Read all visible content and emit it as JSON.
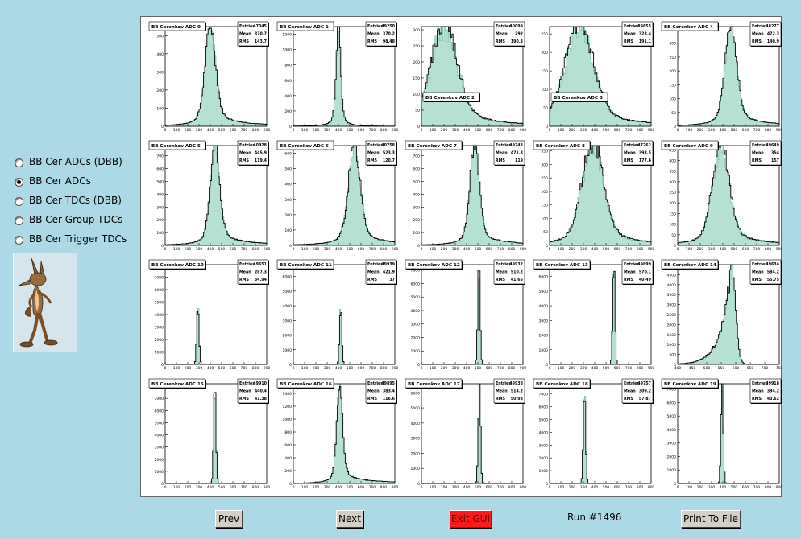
{
  "sidebar": {
    "options": [
      {
        "label": "BB Cer ADCs (DBB)",
        "selected": false
      },
      {
        "label": "BB Cer ADCs",
        "selected": true
      },
      {
        "label": "BB Cer TDCs (DBB)",
        "selected": false
      },
      {
        "label": "BB Cer Group TDCs",
        "selected": false
      },
      {
        "label": "BB Cer Trigger TDCs",
        "selected": false
      }
    ],
    "image_icon": "coyote-icon"
  },
  "colors": {
    "background": "#add8e6",
    "fill": "#b6e1d2",
    "fill_line": "#6fbfa0",
    "exit_button": "#ff1a1a"
  },
  "footer": {
    "prev_label": "Prev",
    "next_label": "Next",
    "exit_label": "Exit GUI",
    "run_label": "Run #1496",
    "print_label": "Print To File"
  },
  "chart_data": [
    {
      "type": "histogram",
      "title": "BB Cerenkov ADC 0",
      "stats": {
        "Entries": "47045",
        "Mean": "370.7",
        "RMS": "143.7"
      },
      "x": [
        0,
        900
      ],
      "ylim": [
        0,
        550
      ],
      "yticks": [
        0,
        100,
        200,
        300,
        400,
        500
      ],
      "xticks": [
        0,
        100,
        200,
        300,
        400,
        500,
        600,
        700,
        800,
        900
      ],
      "peak": {
        "mean": 400,
        "width": 45,
        "tail": true,
        "shape": "narrow"
      },
      "title_pos": "top"
    },
    {
      "type": "histogram",
      "title": "BB Cerenkov ADC 1",
      "stats": {
        "Entries": "49250",
        "Mean": "370.2",
        "RMS": "98.48"
      },
      "x": [
        0,
        900
      ],
      "ylim": [
        0,
        1300
      ],
      "yticks": [
        0,
        200,
        400,
        600,
        800,
        1000,
        1200
      ],
      "xticks": [
        0,
        100,
        200,
        300,
        400,
        500,
        600,
        700,
        800,
        900
      ],
      "peak": {
        "mean": 400,
        "width": 20,
        "tail": false,
        "shape": "narrow"
      },
      "title_pos": "top"
    },
    {
      "type": "histogram",
      "title": "BB Cerenkov ADC 2",
      "stats": {
        "Entries": "40099",
        "Mean": "292",
        "RMS": "190.3"
      },
      "x": [
        0,
        900
      ],
      "ylim": [
        0,
        310
      ],
      "yticks": [
        0,
        50,
        100,
        150,
        200,
        250,
        300
      ],
      "xticks": [
        0,
        100,
        200,
        300,
        400,
        500,
        600,
        700,
        800,
        900
      ],
      "peak": {
        "mean": 200,
        "width": 110,
        "tail": true,
        "shape": "broad"
      },
      "title_pos": "bottom"
    },
    {
      "type": "histogram",
      "title": "BB Cerenkov ADC 3",
      "stats": {
        "Entries": "39655",
        "Mean": "323.4",
        "RMS": "191.1"
      },
      "x": [
        0,
        900
      ],
      "ylim": [
        0,
        270
      ],
      "yticks": [
        0,
        50,
        100,
        150,
        200,
        250
      ],
      "xticks": [
        0,
        100,
        200,
        300,
        400,
        500,
        600,
        700,
        800,
        900
      ],
      "peak": {
        "mean": 260,
        "width": 120,
        "tail": true,
        "shape": "broad"
      },
      "title_pos": "bottom"
    },
    {
      "type": "histogram",
      "title": "BB Cerenkov ADC 4",
      "stats": {
        "Entries": "48277",
        "Mean": "472.3",
        "RMS": "140.9"
      },
      "x": [
        0,
        900
      ],
      "ylim": [
        0,
        360
      ],
      "yticks": [
        0,
        50,
        100,
        150,
        200,
        250,
        300,
        350
      ],
      "xticks": [
        0,
        100,
        200,
        300,
        400,
        500,
        600,
        700,
        800,
        900
      ],
      "peak": {
        "mean": 470,
        "width": 50,
        "tail": true,
        "shape": "narrow"
      },
      "title_pos": "top"
    },
    {
      "type": "histogram",
      "title": "BB Cerenkov ADC 5",
      "stats": {
        "Entries": "40928",
        "Mean": "445.9",
        "RMS": "119.4"
      },
      "x": [
        0,
        900
      ],
      "ylim": [
        0,
        780
      ],
      "yticks": [
        0,
        100,
        200,
        300,
        400,
        500,
        600,
        700
      ],
      "xticks": [
        0,
        100,
        200,
        300,
        400,
        500,
        600,
        700,
        800,
        900
      ],
      "peak": {
        "mean": 440,
        "width": 40,
        "tail": true,
        "shape": "narrow"
      },
      "title_pos": "top"
    },
    {
      "type": "histogram",
      "title": "BB Cerenkov ADC 6",
      "stats": {
        "Entries": "40758",
        "Mean": "523.3",
        "RMS": "120.7"
      },
      "x": [
        0,
        900
      ],
      "ylim": [
        0,
        650
      ],
      "yticks": [
        0,
        100,
        200,
        300,
        400,
        500,
        600
      ],
      "xticks": [
        0,
        100,
        200,
        300,
        400,
        500,
        600,
        700,
        800,
        900
      ],
      "peak": {
        "mean": 540,
        "width": 50,
        "tail": true,
        "shape": "narrow"
      },
      "title_pos": "top"
    },
    {
      "type": "histogram",
      "title": "BB Cerenkov ADC 7",
      "stats": {
        "Entries": "49243",
        "Mean": "471.3",
        "RMS": "119"
      },
      "x": [
        0,
        900
      ],
      "ylim": [
        0,
        780
      ],
      "yticks": [
        0,
        100,
        200,
        300,
        400,
        500,
        600,
        700
      ],
      "xticks": [
        0,
        100,
        200,
        300,
        400,
        500,
        600,
        700,
        800,
        900
      ],
      "peak": {
        "mean": 470,
        "width": 40,
        "tail": true,
        "shape": "narrow"
      },
      "title_pos": "top"
    },
    {
      "type": "histogram",
      "title": "BB Cerenkov ADC 8",
      "stats": {
        "Entries": "47262",
        "Mean": "393.5",
        "RMS": "177.6"
      },
      "x": [
        0,
        900
      ],
      "ylim": [
        0,
        370
      ],
      "yticks": [
        0,
        50,
        100,
        150,
        200,
        250,
        300,
        350
      ],
      "xticks": [
        0,
        100,
        200,
        300,
        400,
        500,
        600,
        700,
        800,
        900
      ],
      "peak": {
        "mean": 380,
        "width": 90,
        "tail": true,
        "shape": "broad"
      },
      "title_pos": "top"
    },
    {
      "type": "histogram",
      "title": "BB Cerenkov ADC 9",
      "stats": {
        "Entries": "49649",
        "Mean": "354",
        "RMS": "157"
      },
      "x": [
        0,
        900
      ],
      "ylim": [
        0,
        470
      ],
      "yticks": [
        0,
        50,
        100,
        150,
        200,
        250,
        300,
        350,
        400,
        450
      ],
      "xticks": [
        0,
        100,
        200,
        300,
        400,
        500,
        600,
        700,
        800,
        900
      ],
      "peak": {
        "mean": 380,
        "width": 70,
        "tail": true,
        "shape": "broad"
      },
      "title_pos": "top"
    },
    {
      "type": "histogram",
      "title": "BB Cerenkov ADC 10",
      "stats": {
        "Entries": "49651",
        "Mean": "287.3",
        "RMS": "34.94"
      },
      "x": [
        0,
        900
      ],
      "ylim": [
        0,
        8000
      ],
      "yticks": [
        0,
        1000,
        2000,
        3000,
        4000,
        5000,
        6000,
        7000
      ],
      "xticks": [
        0,
        100,
        200,
        300,
        400,
        500,
        600,
        700,
        800,
        900
      ],
      "peak": {
        "mean": 290,
        "width": 10,
        "tail": false,
        "shape": "spike",
        "height": 0.6
      },
      "title_pos": "top"
    },
    {
      "type": "histogram",
      "title": "BB Cerenkov ADC 11",
      "stats": {
        "Entries": "49939",
        "Mean": "421.9",
        "RMS": "37"
      },
      "x": [
        0,
        900
      ],
      "ylim": [
        0,
        6800
      ],
      "yticks": [
        0,
        1000,
        2000,
        3000,
        4000,
        5000,
        6000
      ],
      "xticks": [
        0,
        100,
        200,
        300,
        400,
        500,
        600,
        700,
        800,
        900
      ],
      "peak": {
        "mean": 420,
        "width": 10,
        "tail": false,
        "shape": "spike",
        "height": 0.6
      },
      "title_pos": "top"
    },
    {
      "type": "histogram",
      "title": "BB Cerenkov ADC 12",
      "stats": {
        "Entries": "49932",
        "Mean": "510.2",
        "RMS": "41.65"
      },
      "x": [
        0,
        900
      ],
      "ylim": [
        0,
        7400
      ],
      "yticks": [
        0,
        1000,
        2000,
        3000,
        4000,
        5000,
        6000,
        7000
      ],
      "xticks": [
        0,
        100,
        200,
        300,
        400,
        500,
        600,
        700,
        800,
        900
      ],
      "peak": {
        "mean": 510,
        "width": 10,
        "tail": false,
        "shape": "spike",
        "height": 1.0
      },
      "title_pos": "top"
    },
    {
      "type": "histogram",
      "title": "BB Cerenkov ADC 13",
      "stats": {
        "Entries": "49699",
        "Mean": "570.1",
        "RMS": "40.49"
      },
      "x": [
        0,
        900
      ],
      "ylim": [
        0,
        6800
      ],
      "yticks": [
        0,
        1000,
        2000,
        3000,
        4000,
        5000,
        6000
      ],
      "xticks": [
        0,
        100,
        200,
        300,
        400,
        500,
        600,
        700,
        800,
        900
      ],
      "peak": {
        "mean": 570,
        "width": 10,
        "tail": false,
        "shape": "spike",
        "height": 1.0
      },
      "title_pos": "top"
    },
    {
      "type": "histogram",
      "title": "BB Cerenkov ADC 14",
      "stats": {
        "Entries": "49634",
        "Mean": "584.2",
        "RMS": "55.75"
      },
      "x": [
        400,
        750
      ],
      "ylim": [
        0,
        5000
      ],
      "yticks": [
        0,
        500,
        1000,
        1500,
        2000,
        2500,
        3000,
        3500,
        4000,
        4500
      ],
      "xticks": [
        400,
        450,
        500,
        550,
        600,
        650,
        700,
        750
      ],
      "peak": {
        "mean": 585,
        "width": 14,
        "tail": true,
        "shape": "skew",
        "height": 1.0
      },
      "title_pos": "top"
    },
    {
      "type": "histogram",
      "title": "BB Cerenkov ADC 15",
      "stats": {
        "Entries": "49910",
        "Mean": "440.4",
        "RMS": "41.38"
      },
      "x": [
        0,
        900
      ],
      "ylim": [
        0,
        8200
      ],
      "yticks": [
        0,
        1000,
        2000,
        3000,
        4000,
        5000,
        6000,
        7000,
        8000
      ],
      "xticks": [
        0,
        100,
        200,
        300,
        400,
        500,
        600,
        700,
        800,
        900
      ],
      "peak": {
        "mean": 440,
        "width": 10,
        "tail": false,
        "shape": "spike",
        "height": 1.0
      },
      "title_pos": "top"
    },
    {
      "type": "histogram",
      "title": "BB Cerenkov ADC 16",
      "stats": {
        "Entries": "49895",
        "Mean": "383.4",
        "RMS": "116.6"
      },
      "x": [
        0,
        900
      ],
      "ylim": [
        0,
        1550
      ],
      "yticks": [
        0,
        200,
        400,
        600,
        800,
        1000,
        1200,
        1400
      ],
      "xticks": [
        0,
        100,
        200,
        300,
        400,
        500,
        600,
        700,
        800,
        900
      ],
      "peak": {
        "mean": 410,
        "width": 25,
        "tail": true,
        "shape": "narrow",
        "height": 0.95
      },
      "title_pos": "top"
    },
    {
      "type": "histogram",
      "title": "BB Cerenkov ADC 17",
      "stats": {
        "Entries": "49938",
        "Mean": "514.2",
        "RMS": "50.93"
      },
      "x": [
        0,
        900
      ],
      "ylim": [
        0,
        6600
      ],
      "yticks": [
        0,
        1000,
        2000,
        3000,
        4000,
        5000,
        6000
      ],
      "xticks": [
        0,
        100,
        200,
        300,
        400,
        500,
        600,
        700,
        800,
        900
      ],
      "peak": {
        "mean": 514,
        "width": 10,
        "tail": false,
        "shape": "spike",
        "height": 1.0
      },
      "title_pos": "top"
    },
    {
      "type": "histogram",
      "title": "BB Cerenkov ADC 18",
      "stats": {
        "Entries": "49757",
        "Mean": "309.2",
        "RMS": "57.87"
      },
      "x": [
        0,
        900
      ],
      "ylim": [
        0,
        7800
      ],
      "yticks": [
        0,
        1000,
        2000,
        3000,
        4000,
        5000,
        6000,
        7000
      ],
      "xticks": [
        0,
        100,
        200,
        300,
        400,
        500,
        600,
        700,
        800,
        900
      ],
      "peak": {
        "mean": 310,
        "width": 10,
        "tail": false,
        "shape": "spike",
        "height": 1.0
      },
      "title_pos": "top"
    },
    {
      "type": "histogram",
      "title": "BB Cerenkov ADC 19",
      "stats": {
        "Entries": "49918",
        "Mean": "394.2",
        "RMS": "43.62"
      },
      "x": [
        0,
        900
      ],
      "ylim": [
        0,
        7400
      ],
      "yticks": [
        0,
        1000,
        2000,
        3000,
        4000,
        5000,
        6000,
        7000
      ],
      "xticks": [
        0,
        100,
        200,
        300,
        400,
        500,
        600,
        700,
        800,
        900
      ],
      "peak": {
        "mean": 394,
        "width": 10,
        "tail": false,
        "shape": "spike",
        "height": 1.0
      },
      "title_pos": "top"
    }
  ]
}
